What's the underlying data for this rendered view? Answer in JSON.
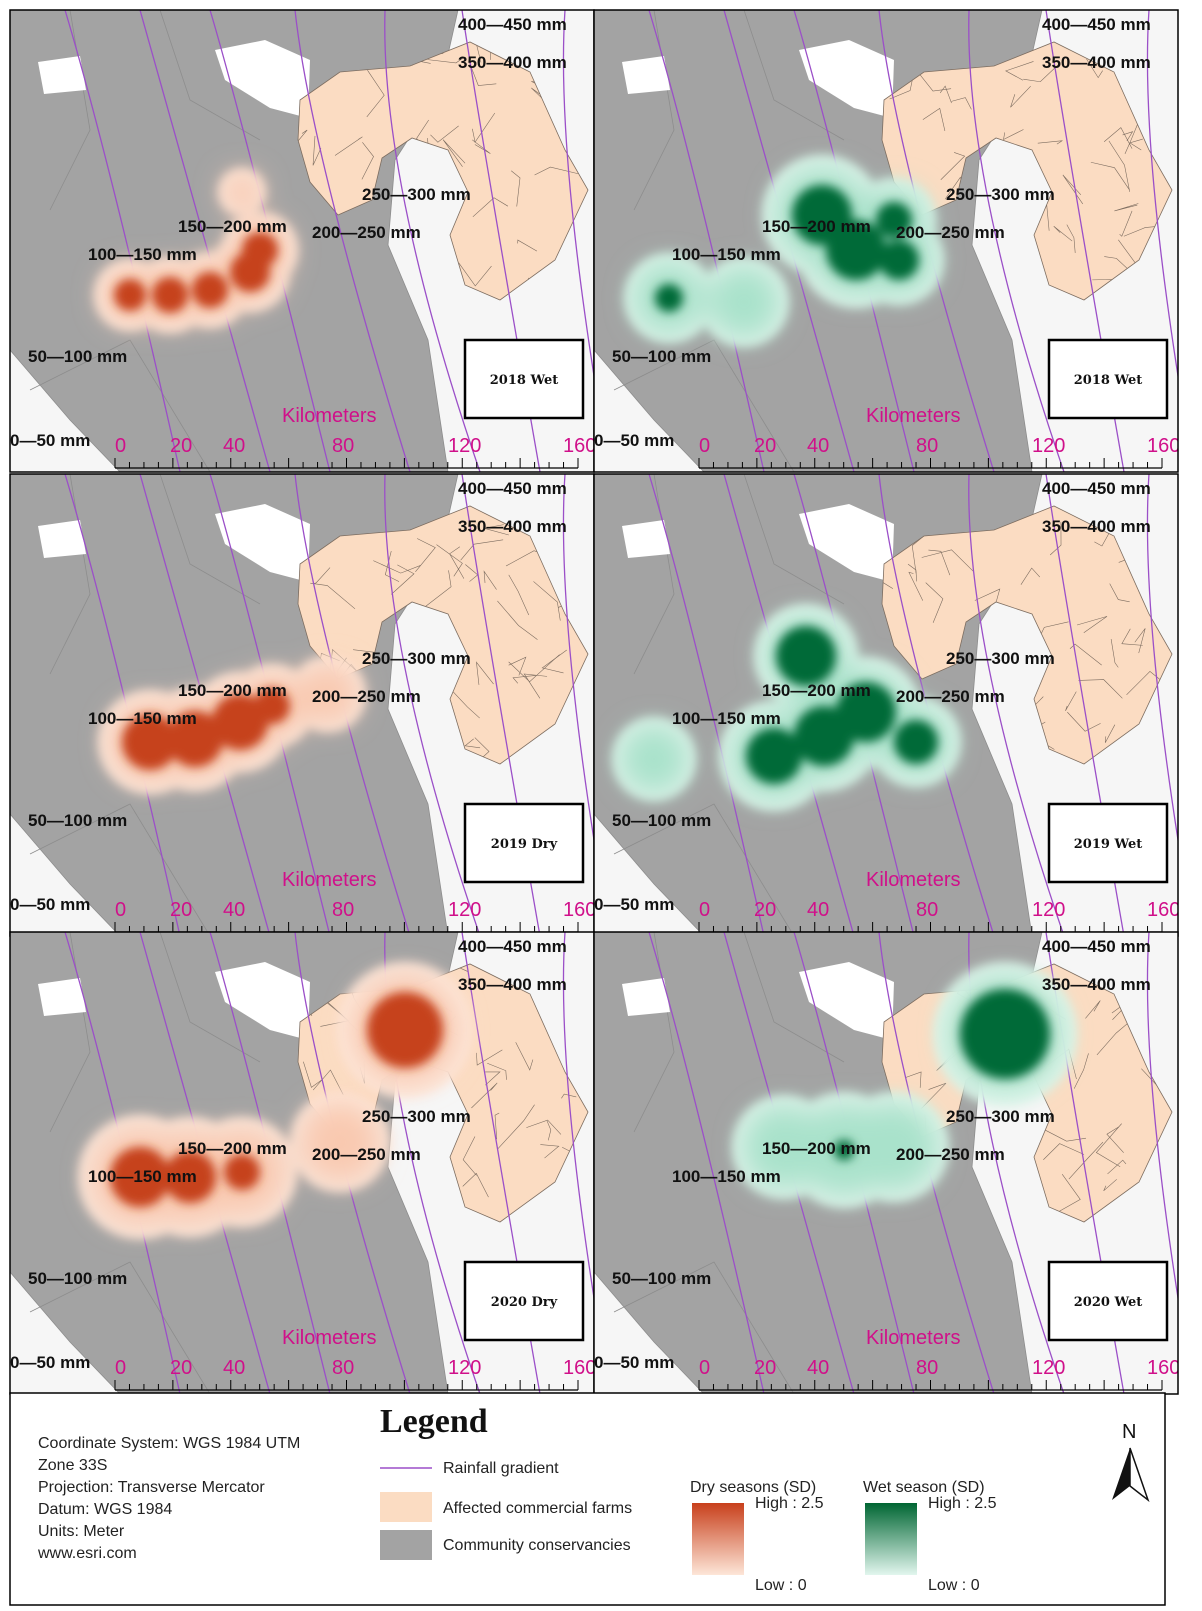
{
  "rainfall_labels": [
    "400—450 mm",
    "350—400 mm",
    "250—300 mm",
    "150—200 mm",
    "200—250 mm",
    "100—150 mm",
    "50—100 mm",
    "0—50 mm"
  ],
  "scale_bar": {
    "title": "Kilometers",
    "ticks": [
      0,
      20,
      40,
      80,
      120,
      160
    ]
  },
  "panels": [
    {
      "label": "2018 Wet"
    },
    {
      "label": "2018 Wet"
    },
    {
      "label": "2019 Dry"
    },
    {
      "label": "2019 Wet"
    },
    {
      "label": "2020 Dry"
    },
    {
      "label": "2020 Wet"
    }
  ],
  "map_info": [
    "Coordinate System: WGS 1984 UTM",
    "Zone 33S",
    "Projection: Transverse Mercator",
    "Datum: WGS 1984",
    "Units: Meter",
    "www.esri.com"
  ],
  "legend": {
    "title": "Legend",
    "items": [
      "Rainfall gradient",
      "Affected commercial farms",
      "Community conservancies"
    ],
    "dry": {
      "title": "Dry seasons (SD)",
      "high": "High : 2.5",
      "low": "Low : 0"
    },
    "wet": {
      "title": "Wet season (SD)",
      "high": "High : 2.5",
      "low": "Low : 0"
    }
  },
  "north": "N"
}
